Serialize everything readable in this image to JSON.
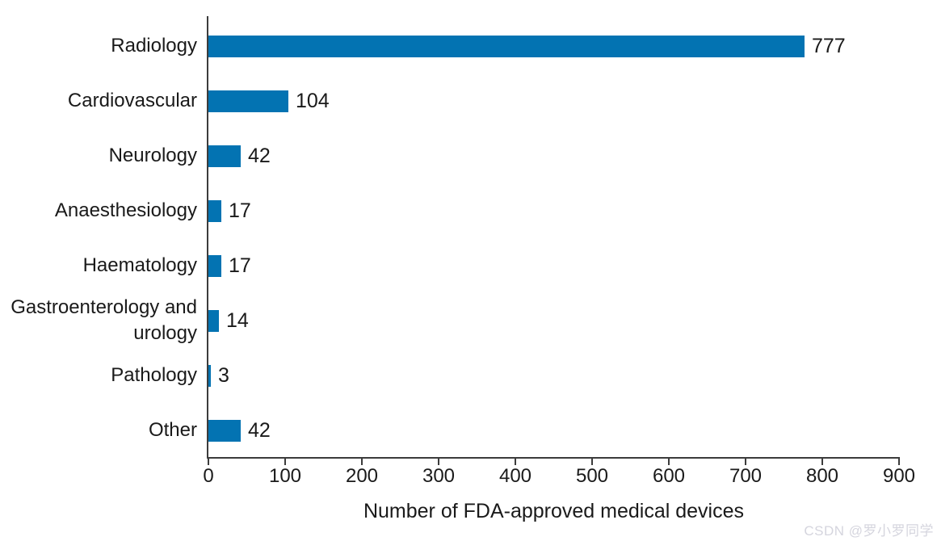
{
  "chart_data": {
    "type": "bar",
    "orientation": "horizontal",
    "title": "",
    "xlabel": "Number of FDA-approved medical devices",
    "ylabel": "",
    "categories": [
      "Radiology",
      "Cardiovascular",
      "Neurology",
      "Anaesthesiology",
      "Haematology",
      "Gastroenterology and urology",
      "Pathology",
      "Other"
    ],
    "values": [
      777,
      104,
      42,
      17,
      17,
      14,
      3,
      42
    ],
    "value_labels": [
      "777",
      "104",
      "42",
      "17",
      "17",
      "14",
      "3",
      "42"
    ],
    "xlim": [
      0,
      900
    ],
    "xticks": [
      0,
      100,
      200,
      300,
      400,
      500,
      600,
      700,
      800,
      900
    ],
    "grid": false,
    "legend": null,
    "bar_color": "#0373b2",
    "axis_color": "#3c3c3c",
    "text_color": "#1a1a1a"
  },
  "watermark": {
    "text": "CSDN @罗小罗同学",
    "color": "#d5d5de"
  }
}
